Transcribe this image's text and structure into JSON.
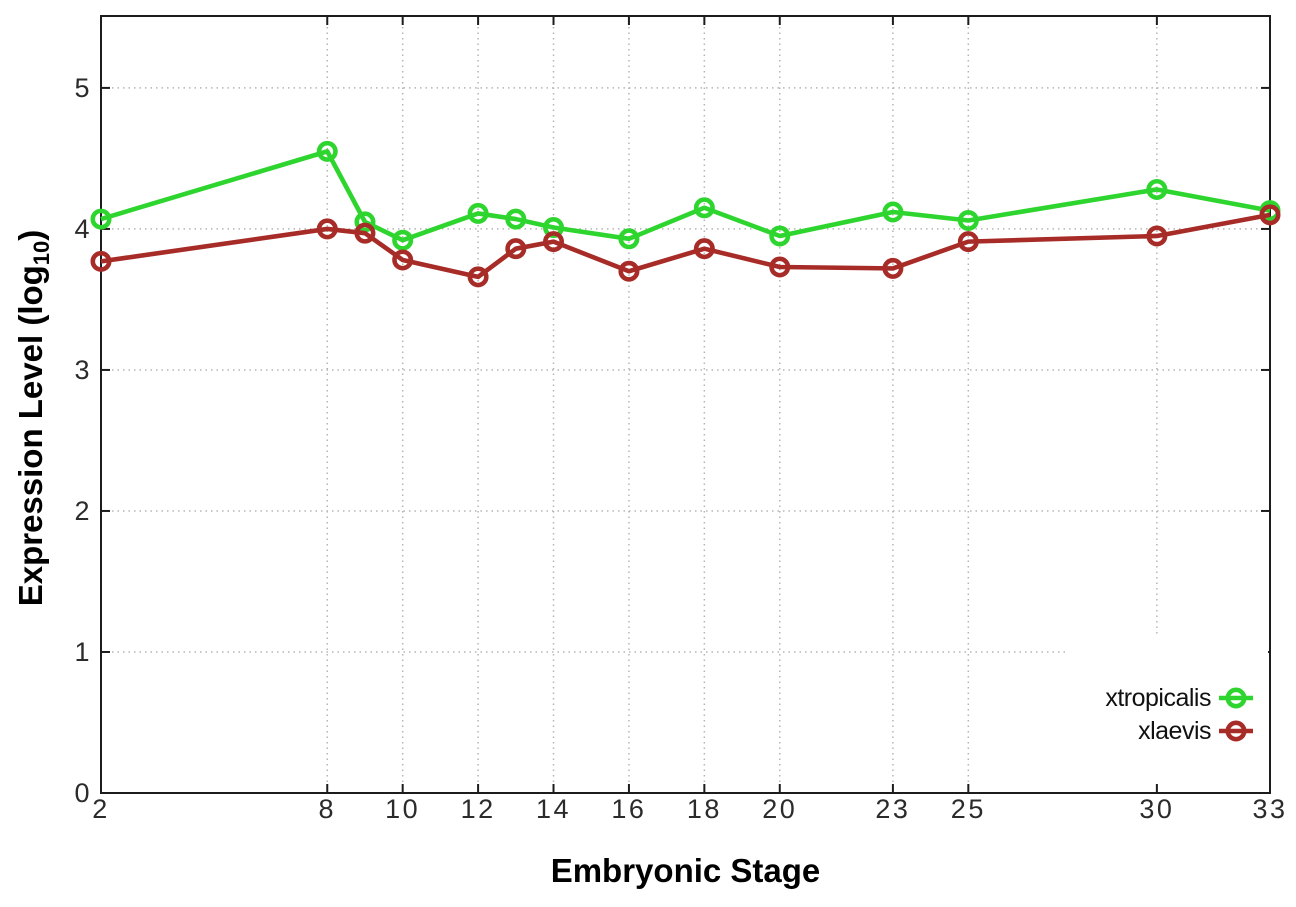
{
  "labels": {
    "xlabel": "Embryonic Stage",
    "ylabel_main": "Expression Level (log",
    "ylabel_sub": "10",
    "ylabel_close": ")"
  },
  "chart_data": {
    "type": "line",
    "title": "",
    "xlabel": "Embryonic Stage",
    "ylabel": "Expression Level (log10)",
    "x": [
      2,
      8,
      9,
      10,
      12,
      13,
      14,
      16,
      18,
      20,
      23,
      25,
      30,
      33
    ],
    "series": [
      {
        "name": "xtropicalis",
        "color": "#2ed52e",
        "values": [
          4.07,
          4.55,
          4.05,
          3.92,
          4.11,
          4.07,
          4.01,
          3.93,
          4.15,
          3.95,
          4.12,
          4.06,
          4.28,
          4.13
        ]
      },
      {
        "name": "xlaevis",
        "color": "#a72c28",
        "values": [
          3.77,
          4.0,
          3.97,
          3.78,
          3.66,
          3.86,
          3.91,
          3.7,
          3.86,
          3.73,
          3.72,
          3.91,
          3.95,
          4.1
        ]
      }
    ],
    "xticks": [
      2,
      8,
      10,
      12,
      14,
      16,
      18,
      20,
      23,
      25,
      30,
      33
    ],
    "yticks": [
      0,
      1,
      2,
      3,
      4,
      5
    ],
    "xlim": [
      2,
      33
    ],
    "ylim": [
      0,
      5.51
    ],
    "grid": true,
    "legend_position": "inside-bottom-right",
    "marker": "open-circle",
    "grid_color": "#b5b5b5",
    "border_color": "#1c1c1c",
    "tick_label_color": "#2b2b2b"
  }
}
